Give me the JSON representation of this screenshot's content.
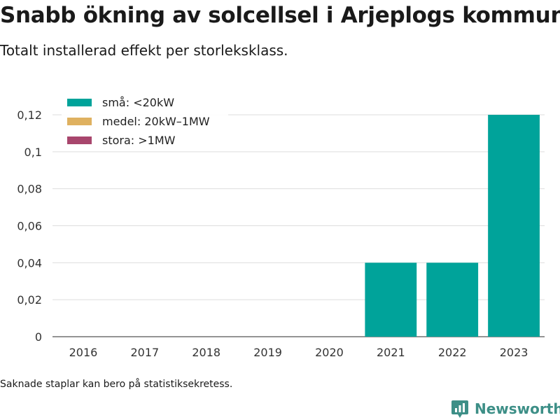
{
  "header": {
    "title": "Snabb ökning av solcellsel i Arjeplogs kommun",
    "subtitle": "Totalt installerad effekt per storleksklass."
  },
  "footer": {
    "note": "Saknade staplar kan bero på statistiksekretess.",
    "brand": "Newsworthy"
  },
  "chart_data": {
    "type": "bar",
    "stacked": true,
    "categories": [
      "2016",
      "2017",
      "2018",
      "2019",
      "2020",
      "2021",
      "2022",
      "2023"
    ],
    "series": [
      {
        "name": "små: <20kW",
        "color": "#00a39a",
        "values": [
          0,
          0,
          0,
          0,
          0,
          0.04,
          0.04,
          0.12
        ]
      },
      {
        "name": "medel: 20kW–1MW",
        "color": "#dfb160",
        "values": [
          0,
          0,
          0,
          0,
          0,
          0,
          0,
          0
        ]
      },
      {
        "name": "stora: >1MW",
        "color": "#a8466d",
        "values": [
          0,
          0,
          0,
          0,
          0,
          0,
          0,
          0
        ]
      }
    ],
    "ylim": [
      0,
      0.12
    ],
    "yticks": [
      0,
      0.02,
      0.04,
      0.06,
      0.08,
      0.1,
      0.12
    ],
    "ytick_labels": [
      "0",
      "0,02",
      "0,04",
      "0,06",
      "0,08",
      "0,1",
      "0,12"
    ],
    "grid": true,
    "legend_position": "top-left"
  }
}
